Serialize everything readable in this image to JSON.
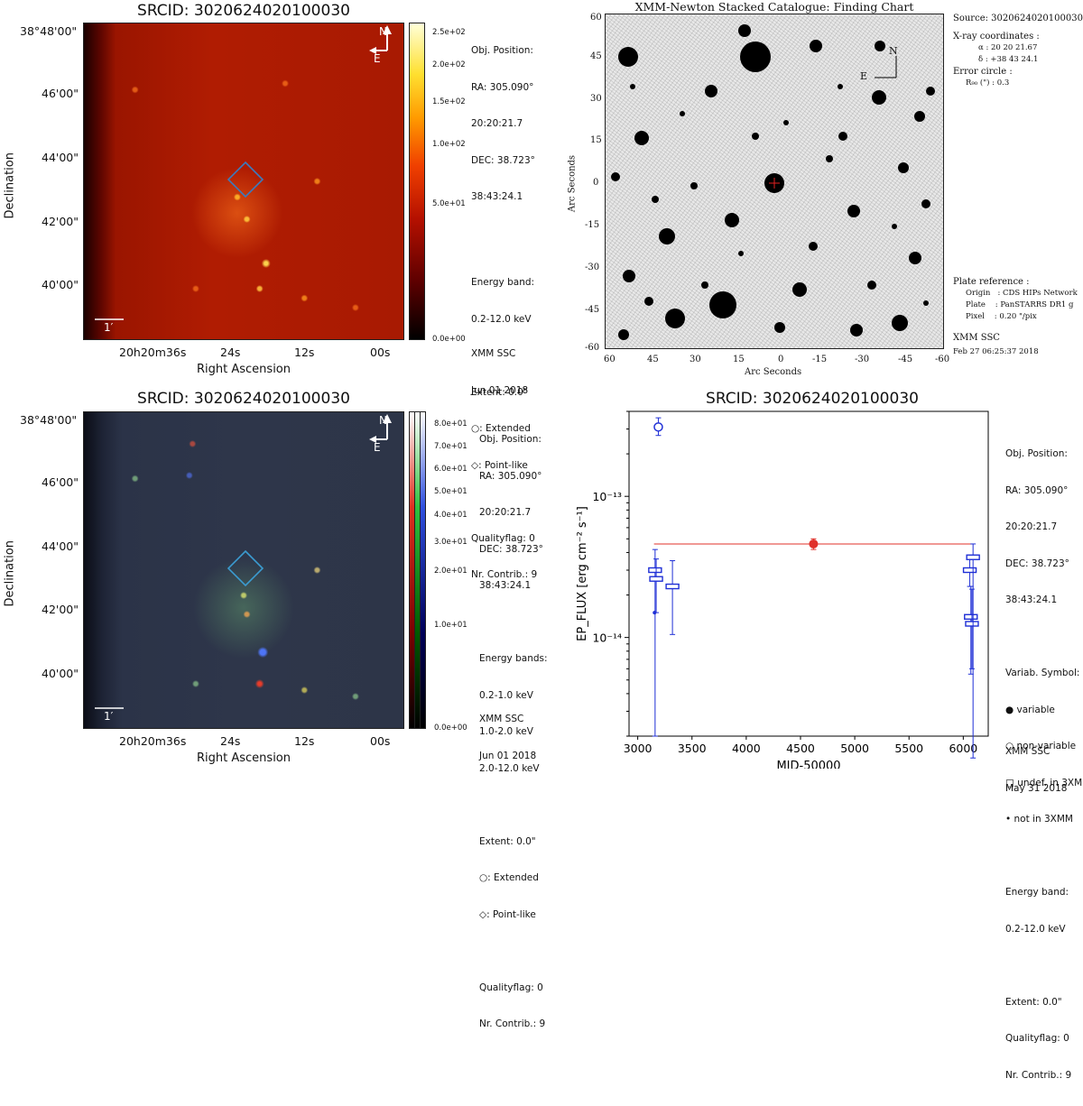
{
  "panel_tl": {
    "title": "SRCID:  3020624020100030",
    "y_axis_label": "Declination",
    "x_axis_label": "Right Ascension",
    "y_ticks": [
      "38°48'00\"",
      "46'00\"",
      "44'00\"",
      "42'00\"",
      "40'00\""
    ],
    "x_ticks": [
      "20h20m36s",
      "24s",
      "12s",
      "00s"
    ],
    "compass_n": "N",
    "compass_e": "E",
    "scale_label": "1′",
    "colorbar_ticks": [
      "2.5e+02",
      "2.0e+02",
      "1.5e+02",
      "1.0e+02",
      "5.0e+01",
      "0.0e+00"
    ],
    "info": [
      "Obj. Position:",
      "RA: 305.090°",
      "  20:20:21.7",
      "DEC: 38.723°",
      "  38:43:24.1",
      "",
      "Energy band:",
      "0.2-12.0 keV",
      "",
      "Extent: 0.0\"",
      "○: Extended",
      "◇: Point-like",
      "",
      "Qualityflag: 0",
      "Nr. Contrib.: 9"
    ],
    "footer": [
      "XMM SSC",
      "Jun 01 2018"
    ]
  },
  "panel_bl": {
    "title": "SRCID:  3020624020100030",
    "y_axis_label": "Declination",
    "x_axis_label": "Right Ascension",
    "y_ticks": [
      "38°48'00\"",
      "46'00\"",
      "44'00\"",
      "42'00\"",
      "40'00\""
    ],
    "x_ticks": [
      "20h20m36s",
      "24s",
      "12s",
      "00s"
    ],
    "compass_n": "N",
    "compass_e": "E",
    "scale_label": "1′",
    "colorbar_ticks": [
      "8.0e+01",
      "7.0e+01",
      "6.0e+01",
      "5.0e+01",
      "4.0e+01",
      "3.0e+01",
      "2.0e+01",
      "1.0e+01",
      "0.0e+00"
    ],
    "info": [
      "Obj. Position:",
      "RA: 305.090°",
      "  20:20:21.7",
      "DEC: 38.723°",
      "  38:43:24.1",
      "",
      "Energy bands:",
      "0.2-1.0 keV",
      "1.0-2.0 keV",
      "2.0-12.0 keV",
      "",
      "Extent: 0.0\"",
      "○: Extended",
      "◇: Point-like",
      "",
      "Qualityflag: 0",
      "Nr. Contrib.: 9"
    ],
    "footer": [
      "XMM SSC",
      "Jun 01 2018"
    ]
  },
  "panel_tr": {
    "title": "XMM-Newton Stacked Catalogue: Finding Chart",
    "y_axis_label": "Arc Seconds",
    "x_axis_label": "Arc Seconds",
    "y_ticks": [
      "60",
      "45",
      "30",
      "15",
      "0",
      "-15",
      "-30",
      "-45",
      "-60"
    ],
    "x_ticks": [
      "60",
      "45",
      "30",
      "15",
      "0",
      "-15",
      "-30",
      "-45",
      "-60"
    ],
    "compass_n": "N",
    "compass_e": "E",
    "source_line": "Source: 3020624020100030",
    "xray_header": "X-ray coordinates :",
    "alpha_line": "α  :  20 20 21.67",
    "delta_line": "δ  : +38 43 24.1",
    "error_header": "Error circle :",
    "r90_line": "R₉₀ (\") :  0.3",
    "plate_header": "Plate reference :",
    "plate_origin": "Origin   : CDS HIPs Network",
    "plate_plate": "Plate    : PanSTARRS DR1 g",
    "plate_pixel": "Pixel    : 0.20 \"/pix",
    "footer1": "XMM SSC",
    "footer2": "Feb 27 06:25:37 2018"
  },
  "panel_br": {
    "title": "SRCID:  3020624020100030",
    "info": [
      "Obj. Position:",
      "RA: 305.090°",
      "  20:20:21.7",
      "DEC: 38.723°",
      "  38:43:24.1",
      "",
      "Variab. Symbol:",
      "● variable",
      "○ non-variable",
      "□ undef. in 3XMM",
      "•  not in 3XMM",
      "",
      "Energy band:",
      "0.2-12.0 keV",
      "",
      "Extent: 0.0\"",
      "Qualityflag: 0",
      "Nr. Contrib.: 9"
    ],
    "footer": [
      "XMM SSC",
      "May 31 2018"
    ]
  },
  "chart_data": {
    "type": "scatter",
    "title": "SRCID:  3020624020100030",
    "xlabel": "MJD-50000",
    "ylabel": "EP_FLUX [erg cm⁻² s⁻¹]",
    "xlim": [
      2920,
      6230
    ],
    "ylim": [
      2e-15,
      4e-13
    ],
    "y_scale": "log",
    "x_ticks": [
      "3000",
      "3500",
      "4000",
      "4500",
      "5000",
      "5500",
      "6000"
    ],
    "y_ticks": [
      {
        "value": 1e-13,
        "label": "10⁻¹³"
      },
      {
        "value": 1e-14,
        "label": "10⁻¹⁴"
      }
    ],
    "mean_flux": {
      "value": 4.6e-14,
      "x_range": [
        3150,
        6080
      ],
      "color": "#e0302a"
    },
    "series": [
      {
        "symbol": "circle-open",
        "color": "#1f2fd6",
        "points": [
          {
            "x": 3190,
            "y": 3.1e-13,
            "ylo": 2.7e-13,
            "yhi": 3.6e-13
          }
        ]
      },
      {
        "symbol": "circle-filled",
        "color": "#e0302a",
        "points": [
          {
            "x": 4620,
            "y": 4.6e-14,
            "ylo": 4.2e-14,
            "yhi": 5e-14
          }
        ]
      },
      {
        "symbol": "square-open",
        "color": "#1f2fd6",
        "points": [
          {
            "x": 3160,
            "y": 3e-14,
            "ylo": 2e-15,
            "yhi": 4.2e-14
          },
          {
            "x": 3170,
            "y": 2.6e-14,
            "ylo": 1.5e-14,
            "yhi": 3.6e-14
          },
          {
            "x": 3320,
            "y": 2.3e-14,
            "ylo": 1.05e-14,
            "yhi": 3.5e-14
          },
          {
            "x": 6060,
            "y": 3e-14,
            "ylo": 2.3e-14,
            "yhi": 3.8e-14
          },
          {
            "x": 6070,
            "y": 1.4e-14,
            "ylo": 5.5e-15,
            "yhi": 2.3e-14
          },
          {
            "x": 6080,
            "y": 1.25e-14,
            "ylo": 6e-15,
            "yhi": 2.2e-14
          },
          {
            "x": 6090,
            "y": 3.7e-14,
            "ylo": 1.4e-15,
            "yhi": 4.6e-14
          }
        ]
      },
      {
        "symbol": "dot",
        "color": "#1f2fd6",
        "points": [
          {
            "x": 3155,
            "y": 1.5e-14
          }
        ]
      }
    ]
  }
}
